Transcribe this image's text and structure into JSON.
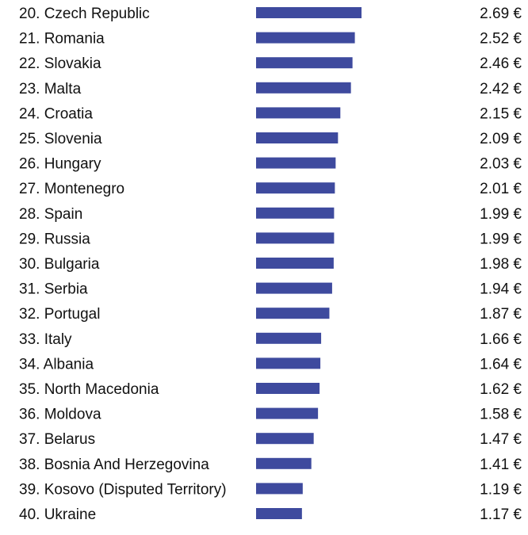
{
  "chart_data": {
    "type": "bar",
    "orientation": "horizontal",
    "bar_color": "#3E4A9E",
    "value_suffix": " €",
    "categories": [
      "20. Czech Republic",
      "21. Romania",
      "22. Slovakia",
      "23. Malta",
      "24. Croatia",
      "25. Slovenia",
      "26. Hungary",
      "27. Montenegro",
      "28. Spain",
      "29. Russia",
      "30. Bulgaria",
      "31. Serbia",
      "32. Portugal",
      "33. Italy",
      "34. Albania",
      "35. North Macedonia",
      "36. Moldova",
      "37. Belarus",
      "38. Bosnia And Herzegovina",
      "39. Kosovo (Disputed Territory)",
      "40. Ukraine"
    ],
    "values": [
      2.69,
      2.52,
      2.46,
      2.42,
      2.15,
      2.09,
      2.03,
      2.01,
      1.99,
      1.99,
      1.98,
      1.94,
      1.87,
      1.66,
      1.64,
      1.62,
      1.58,
      1.47,
      1.41,
      1.19,
      1.17
    ],
    "value_labels": [
      "2.69 €",
      "2.52 €",
      "2.46 €",
      "2.42 €",
      "2.15 €",
      "2.09 €",
      "2.03 €",
      "2.01 €",
      "1.99 €",
      "1.99 €",
      "1.98 €",
      "1.94 €",
      "1.87 €",
      "1.66 €",
      "1.64 €",
      "1.62 €",
      "1.58 €",
      "1.47 €",
      "1.41 €",
      "1.19 €",
      "1.17 €"
    ],
    "xlim": [
      0,
      2.69
    ],
    "grid": false,
    "legend": "none"
  }
}
